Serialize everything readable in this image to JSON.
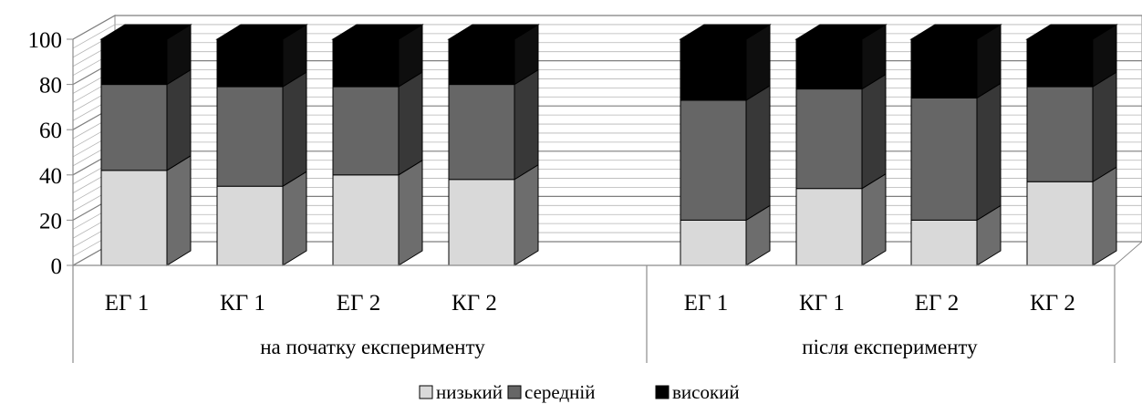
{
  "chart_data": {
    "type": "bar",
    "stacked": true,
    "three_d": true,
    "groups": [
      {
        "label": "на початку експерименту",
        "categories": [
          "ЕГ 1",
          "КГ 1",
          "ЕГ 2",
          "КГ 2"
        ]
      },
      {
        "label": "після експерименту",
        "categories": [
          "ЕГ 1",
          "КГ 1",
          "ЕГ 2",
          "КГ 2"
        ]
      }
    ],
    "series": [
      {
        "name": "низький",
        "color": "#d9d9d9",
        "values": [
          42,
          35,
          40,
          38,
          20,
          34,
          20,
          37
        ]
      },
      {
        "name": "середній",
        "color": "#666666",
        "values": [
          38,
          44,
          39,
          42,
          53,
          44,
          54,
          42
        ]
      },
      {
        "name": "високий",
        "color": "#000000",
        "values": [
          20,
          21,
          21,
          20,
          27,
          22,
          26,
          21
        ]
      }
    ],
    "yaxis": {
      "min": 0,
      "max": 100,
      "ticks": [
        "0",
        "20",
        "40",
        "60",
        "80",
        "100"
      ]
    },
    "grid": true,
    "legend_position": "bottom"
  }
}
